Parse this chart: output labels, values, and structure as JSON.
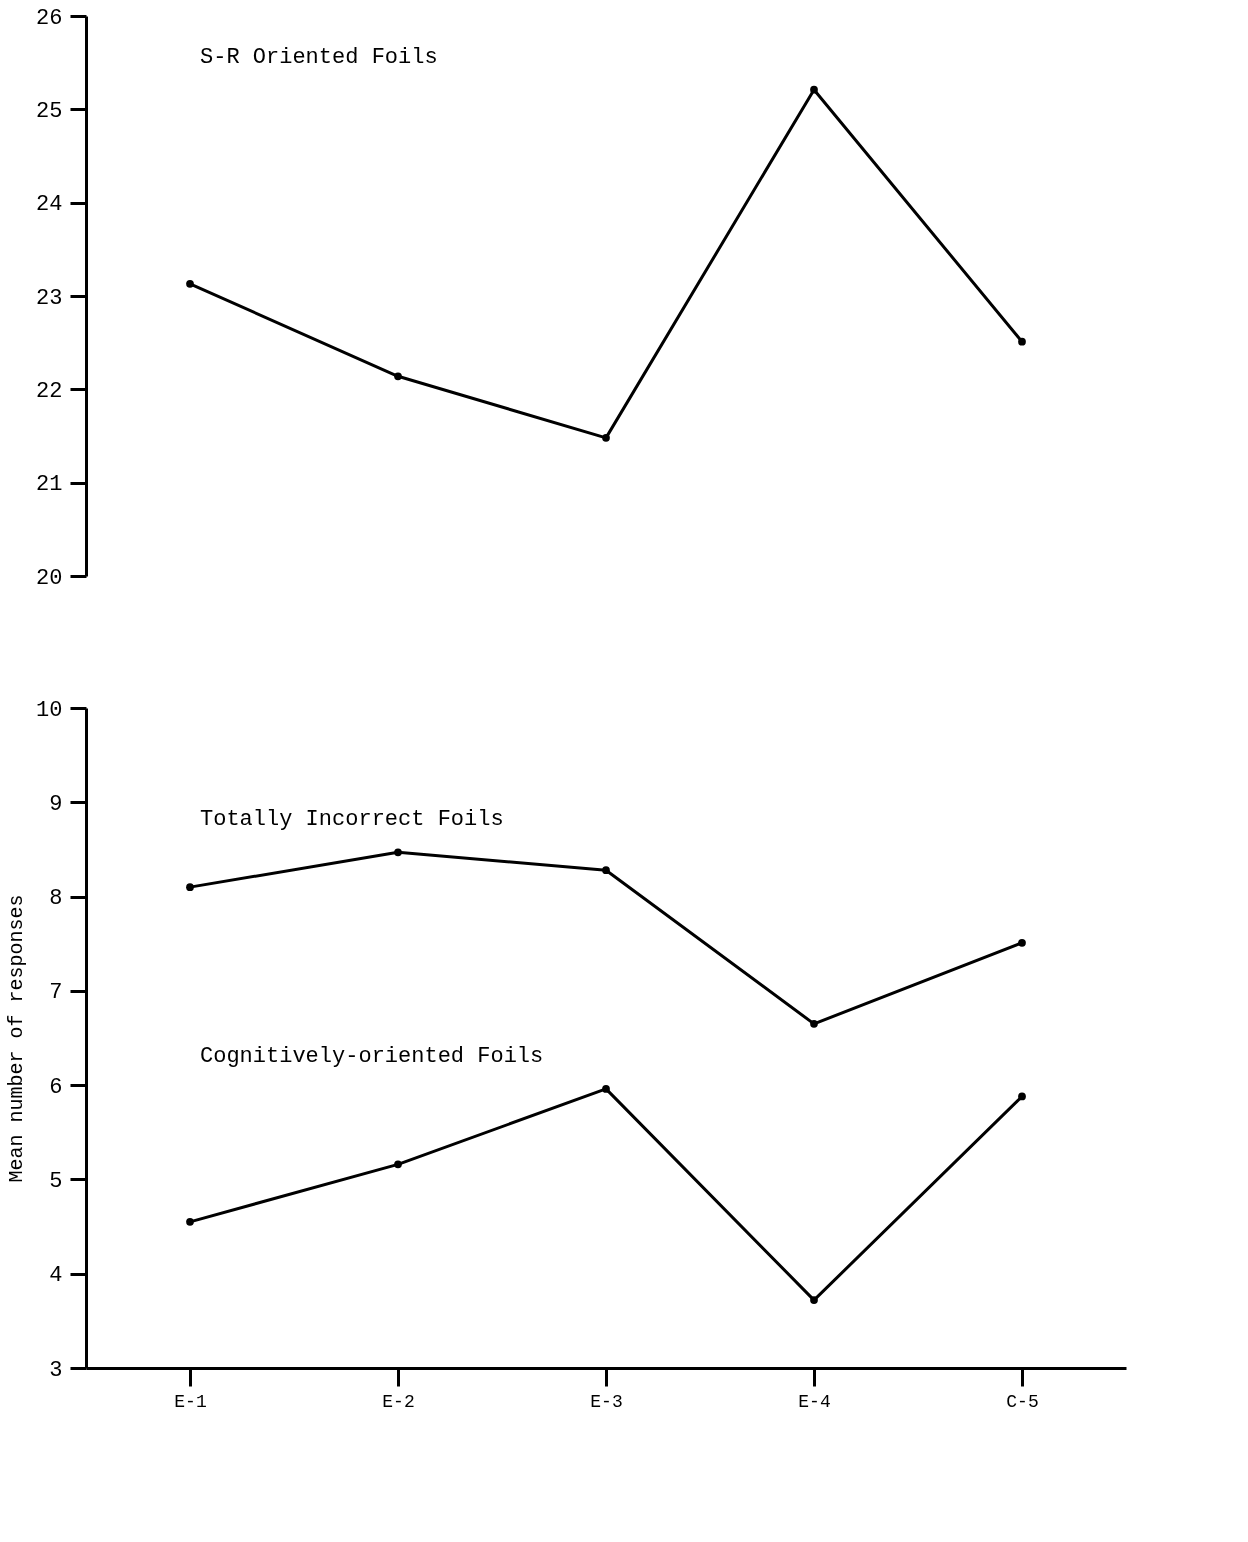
{
  "chart_data": [
    {
      "type": "line",
      "categories": [
        null,
        null,
        null,
        null,
        null
      ],
      "ylim": [
        20,
        26
      ],
      "yticks": [
        20,
        21,
        22,
        23,
        24,
        25,
        26
      ],
      "tick_labels": "y",
      "marker": "circle",
      "line_style": "solid",
      "grid": false,
      "series": [
        {
          "name": "S-R Oriented Foils",
          "color": "#000000",
          "values": [
            23.13,
            22.14,
            21.48,
            25.21,
            22.51
          ]
        }
      ]
    },
    {
      "type": "line",
      "categories": [
        "E-1",
        "E-2",
        "E-3",
        "E-4",
        "C-5"
      ],
      "ylabel": "Mean number of responses",
      "ylim": [
        3,
        10
      ],
      "yticks": [
        3,
        4,
        5,
        6,
        7,
        8,
        9,
        10
      ],
      "marker": "circle",
      "line_style": "solid",
      "grid": false,
      "series": [
        {
          "name": "Totally Incorrect Foils",
          "color": "#000000",
          "values": [
            8.1,
            8.47,
            8.28,
            6.65,
            7.51
          ]
        },
        {
          "name": "Cognitively-oriented Foils",
          "color": "#000000",
          "values": [
            4.55,
            5.16,
            5.96,
            3.72,
            5.88
          ]
        }
      ]
    }
  ]
}
